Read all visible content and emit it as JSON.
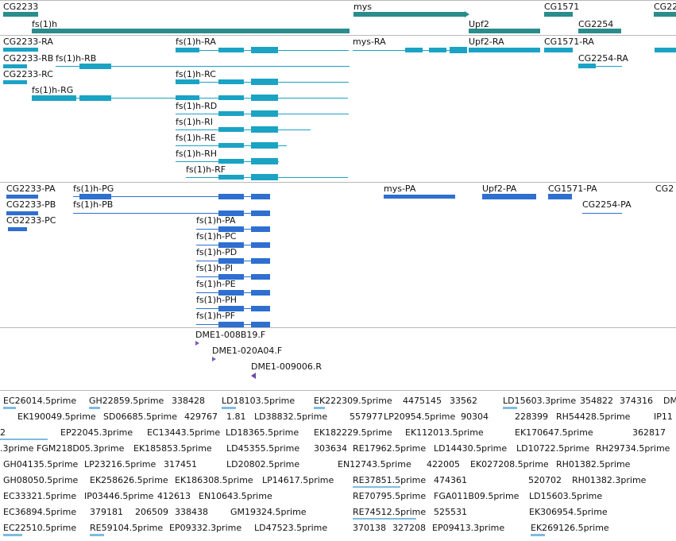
{
  "colors": {
    "gene": "#2a8c8c",
    "transcript": "#1ba3c4",
    "protein": "#2e6fd0",
    "clone": "#7a5bb5",
    "est": "#7fbbe0",
    "divider": "#b8b8b8"
  },
  "genes": [
    "CG2233",
    "fs(1)h",
    "mys",
    "Upf2",
    "CG1571",
    "CG2254",
    "CG22"
  ],
  "transcripts": [
    "CG2233-RA",
    "fs(1)h-RA",
    "mys-RA",
    "Upf2-RA",
    "CG1571-RA",
    "CG2254-RA",
    "CG2233-RB",
    "fs(1)h-RB",
    "CG2233-RC",
    "fs(1)h-RC",
    "fs(1)h-RG",
    "fs(1)h-RD",
    "fs(1)h-RI",
    "fs(1)h-RE",
    "fs(1)h-RH",
    "fs(1)h-RF"
  ],
  "proteins": [
    "CG2233-PA",
    "fs(1)h-PG",
    "mys-PA",
    "Upf2-PA",
    "CG1571-PA",
    "CG2",
    "CG2233-PB",
    "fs(1)h-PB",
    "CG2254-PA",
    "CG2233-PC",
    "fs(1)h-PA",
    "fs(1)h-PC",
    "fs(1)h-PD",
    "fs(1)h-PI",
    "fs(1)h-PE",
    "fs(1)h-PH",
    "fs(1)h-PF"
  ],
  "clones": [
    "DME1-008B19.F",
    "DME1-020A04.F",
    "DME1-009006.R"
  ],
  "ests": [
    "EC26014.5prime",
    "GH22859.5prime",
    "338428",
    "LD18103.5prime",
    "EK222309.5prime",
    "4475145",
    "33562",
    "LD15603.3prime",
    "354822",
    "374316",
    "DM",
    "EK190049.5prime",
    "SD06685.5prime",
    "429767",
    "1.81",
    "LD38832.5prime",
    "557977",
    "LP20954.5prime",
    "90304",
    "228399",
    "RH54428.5prime",
    "IP11",
    "2",
    "EP22045.3prime",
    "EC13443.5prime",
    "LD18365.5prime",
    "EK182229.5prime",
    "EK112013.5prime",
    "EK170647.5prime",
    "362817",
    ".3prime",
    "FGM218D05.3prime",
    "EK185853.5prime",
    "LD45355.5prime",
    "303634",
    "RE17962.5prime",
    "LD14430.5prime",
    "LD10722.5prime",
    "RH29734.5prime",
    "GH04135.5prime",
    "LP23216.5prime",
    "317451",
    "LD20802.5prime",
    "EN12743.5prime",
    "422005",
    "EK027208.5prime",
    "RH01382.5prime",
    "GH08050.5prime",
    "EK258626.5prime",
    "EK186308.5prime",
    "LP14617.5prime",
    "RE37851.5prime",
    "474361",
    "520702",
    "RH01382.3prime",
    "EC33321.5prime",
    "IP03446.5prime",
    "412613",
    "EN10643.5prime",
    "RE70795.5prime",
    "FGA011B09.5prime",
    "LD15603.5prime",
    "EC36894.5prime",
    "379181",
    "206509",
    "338438",
    "GM19324.5prime",
    "RE74512.5prime",
    "525531",
    "EK306954.5prime",
    "EC22510.5prime",
    "RE59104.5prime",
    "EP09332.3prime",
    "LD47523.5prime",
    "370138",
    "327208",
    "EP09413.3prime",
    "EK269126.5prime"
  ]
}
